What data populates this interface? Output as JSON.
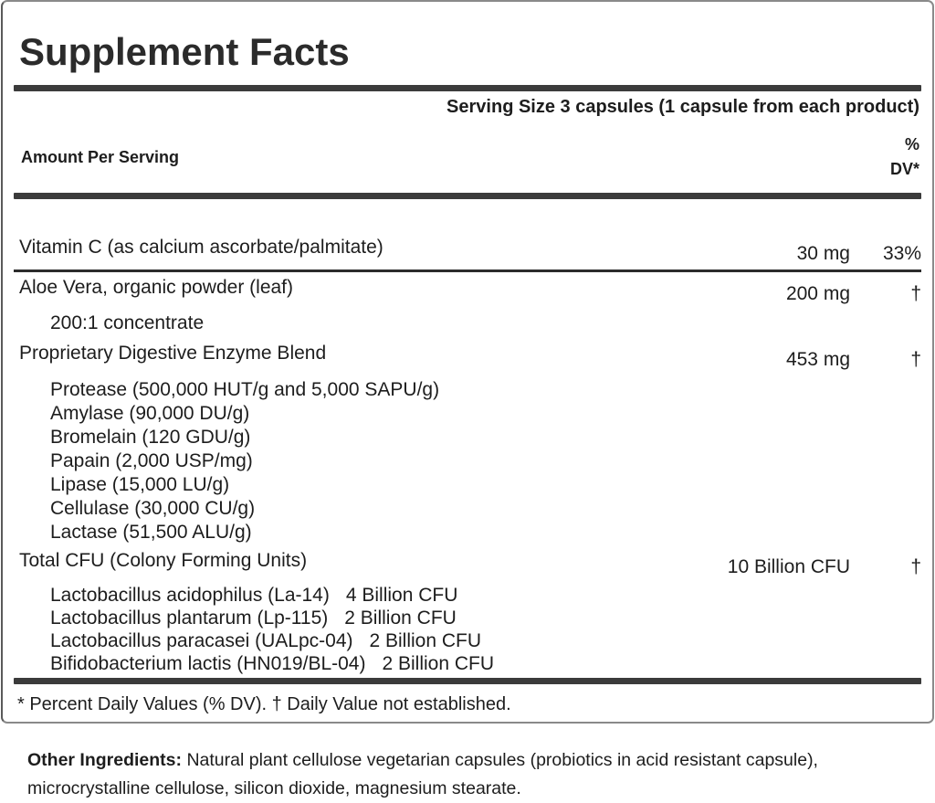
{
  "colors": {
    "bar": "#3b3b3b",
    "thin_rule": "#2c2c2c",
    "panel_border": "#8a8a8a",
    "text": "#1d1d1d",
    "background": "#ffffff"
  },
  "panel": {
    "title": "Supplement Facts",
    "serving_size": "Serving Size 3 capsules (1 capsule from each product)",
    "header": {
      "amount_label": "Amount Per Serving",
      "dv_line1": "%",
      "dv_line2": "DV*"
    },
    "rows": {
      "vitamin_c": {
        "name": "Vitamin C (as calcium ascorbate/palmitate)",
        "amount": "30 mg",
        "dv": "33%"
      },
      "aloe": {
        "name": "Aloe Vera, organic powder (leaf)",
        "sub": "200:1 concentrate",
        "amount": "200 mg",
        "dv": "†"
      },
      "enzyme_blend": {
        "name": "Proprietary Digestive Enzyme Blend",
        "amount": "453 mg",
        "dv": "†",
        "components": [
          "Protease (500,000 HUT/g and 5,000 SAPU/g)",
          "Amylase (90,000 DU/g)",
          "Bromelain (120 GDU/g)",
          "Papain (2,000 USP/mg)",
          "Lipase (15,000 LU/g)",
          "Cellulase (30,000 CU/g)",
          "Lactase (51,500 ALU/g)"
        ]
      },
      "total_cfu": {
        "name": "Total CFU (Colony Forming Units)",
        "amount": "10 Billion CFU",
        "dv": "†",
        "strains": [
          {
            "name": "Lactobacillus acidophilus (La-14)",
            "cfu": "4 Billion CFU"
          },
          {
            "name": "Lactobacillus plantarum (Lp-115)",
            "cfu": "2 Billion CFU"
          },
          {
            "name": "Lactobacillus paracasei (UALpc-04)",
            "cfu": "2 Billion CFU"
          },
          {
            "name": "Bifidobacterium lactis (HN019/BL-04)",
            "cfu": "2 Billion CFU"
          }
        ]
      }
    },
    "footnote": "* Percent Daily Values (% DV). † Daily Value not established."
  },
  "other_ingredients": {
    "label": "Other Ingredients:",
    "text": "Natural plant cellulose vegetarian capsules (probiotics in acid resistant capsule), microcrystalline cellulose, silicon dioxide, magnesium stearate."
  }
}
